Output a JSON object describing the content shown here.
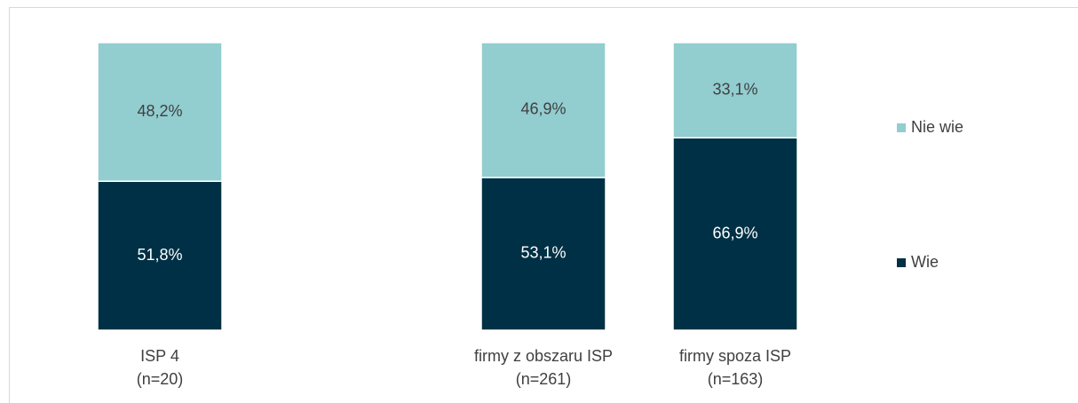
{
  "chart_data": {
    "type": "stacked_bar",
    "categories": [
      "ISP 4\n(n=20)",
      null,
      "firmy z obszaru ISP\n(n=261)",
      "firmy spoza ISP\n(n=163)"
    ],
    "series": [
      {
        "name": "Wie",
        "color": "#003045",
        "values": [
          51.8,
          null,
          53.1,
          66.9
        ],
        "value_labels": [
          "51,8%",
          null,
          "53,1%",
          "66,9%"
        ]
      },
      {
        "name": "Nie wie",
        "color": "#92cdd0",
        "values": [
          48.2,
          null,
          46.9,
          33.1
        ],
        "value_labels": [
          "48,2%",
          null,
          "46,9%",
          "33,1%"
        ]
      }
    ],
    "ylim": [
      0,
      100
    ],
    "legend": "right"
  }
}
